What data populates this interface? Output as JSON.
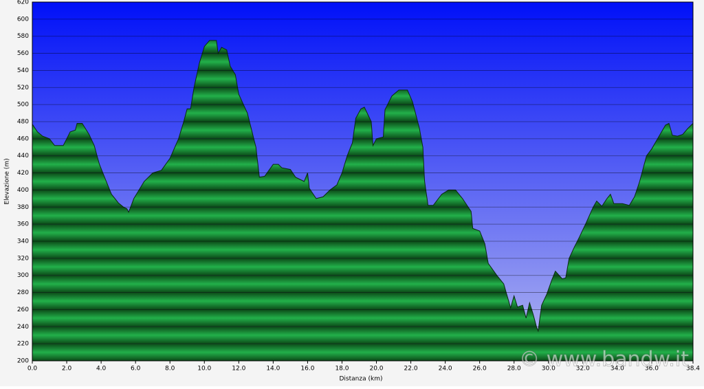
{
  "chart_data": {
    "type": "area",
    "x_label": "Distanza  (km)",
    "y_label": "Elevazione (m)",
    "annotation": "© www.bandw.it",
    "color": "#1fa43c",
    "grid": true,
    "xlim": [
      0,
      38.4
    ],
    "ylim": [
      200,
      620
    ],
    "xticks": [
      {
        "value": 0,
        "label": "0.0"
      },
      {
        "value": 2,
        "label": "2.0"
      },
      {
        "value": 4,
        "label": "4.0"
      },
      {
        "value": 6,
        "label": "6.0"
      },
      {
        "value": 8,
        "label": "8.0"
      },
      {
        "value": 10,
        "label": "10.0"
      },
      {
        "value": 12,
        "label": "12.0"
      },
      {
        "value": 14,
        "label": "14.0"
      },
      {
        "value": 16,
        "label": "16.0"
      },
      {
        "value": 18,
        "label": "18.0"
      },
      {
        "value": 20,
        "label": "20.0"
      },
      {
        "value": 22,
        "label": "22.0"
      },
      {
        "value": 24,
        "label": "24.0"
      },
      {
        "value": 26,
        "label": "26.0"
      },
      {
        "value": 28,
        "label": "28.0"
      },
      {
        "value": 30,
        "label": "30.0"
      },
      {
        "value": 32,
        "label": "32.0"
      },
      {
        "value": 34,
        "label": "34.0"
      },
      {
        "value": 36,
        "label": "36.0"
      },
      {
        "value": 38.4,
        "label": "38.4"
      }
    ],
    "yticks": [
      200,
      220,
      240,
      260,
      280,
      300,
      320,
      340,
      360,
      380,
      400,
      420,
      440,
      460,
      480,
      500,
      520,
      540,
      560,
      580,
      600,
      620
    ],
    "x": [
      0,
      0.3,
      0.6,
      1.0,
      1.3,
      1.8,
      2.2,
      2.5,
      2.6,
      2.9,
      3.3,
      3.6,
      3.9,
      4.3,
      4.6,
      5.0,
      5.3,
      5.5,
      5.6,
      5.9,
      6.2,
      6.5,
      7.0,
      7.5,
      8.0,
      8.5,
      8.8,
      9.0,
      9.2,
      9.4,
      9.7,
      10.0,
      10.3,
      10.7,
      10.8,
      11.0,
      11.3,
      11.5,
      11.8,
      12.0,
      12.5,
      13.0,
      13.2,
      13.5,
      14.0,
      14.3,
      14.5,
      15.0,
      15.3,
      15.8,
      16.0,
      16.1,
      16.5,
      16.9,
      17.3,
      17.7,
      18.0,
      18.3,
      18.6,
      18.8,
      19.1,
      19.3,
      19.7,
      19.8,
      20.0,
      20.4,
      20.5,
      20.9,
      21.3,
      21.8,
      22.1,
      22.5,
      22.7,
      22.8,
      23.0,
      23.3,
      23.8,
      24.2,
      24.6,
      25.0,
      25.5,
      25.6,
      26.0,
      26.3,
      26.5,
      27.0,
      27.4,
      27.8,
      28.0,
      28.2,
      28.5,
      28.7,
      28.9,
      29.1,
      29.3,
      29.4,
      29.6,
      29.9,
      30.2,
      30.4,
      30.8,
      31.0,
      31.2,
      31.5,
      31.8,
      32.2,
      32.6,
      32.8,
      33.1,
      33.4,
      33.6,
      33.8,
      34.3,
      34.7,
      35.0,
      35.3,
      35.7,
      36.0,
      36.4,
      36.8,
      37.0,
      37.2,
      37.5,
      37.8,
      38.1,
      38.4
    ],
    "values": [
      477,
      468,
      463,
      460,
      452,
      452,
      468,
      470,
      478,
      478,
      465,
      452,
      430,
      410,
      395,
      385,
      380,
      378,
      374,
      390,
      400,
      410,
      420,
      423,
      437,
      460,
      480,
      495,
      495,
      520,
      548,
      568,
      575,
      575,
      560,
      567,
      564,
      545,
      535,
      512,
      490,
      450,
      415,
      416,
      430,
      430,
      426,
      424,
      415,
      410,
      420,
      402,
      390,
      392,
      400,
      406,
      420,
      440,
      455,
      484,
      495,
      497,
      480,
      452,
      460,
      462,
      494,
      510,
      517,
      517,
      503,
      472,
      450,
      410,
      382,
      382,
      395,
      400,
      400,
      390,
      375,
      355,
      352,
      337,
      314,
      300,
      290,
      262,
      276,
      263,
      265,
      250,
      268,
      255,
      240,
      235,
      265,
      278,
      295,
      305,
      296,
      297,
      320,
      333,
      345,
      362,
      380,
      387,
      381,
      390,
      395,
      384,
      384,
      382,
      392,
      410,
      440,
      448,
      462,
      476,
      478,
      464,
      463,
      465,
      472,
      478
    ]
  }
}
